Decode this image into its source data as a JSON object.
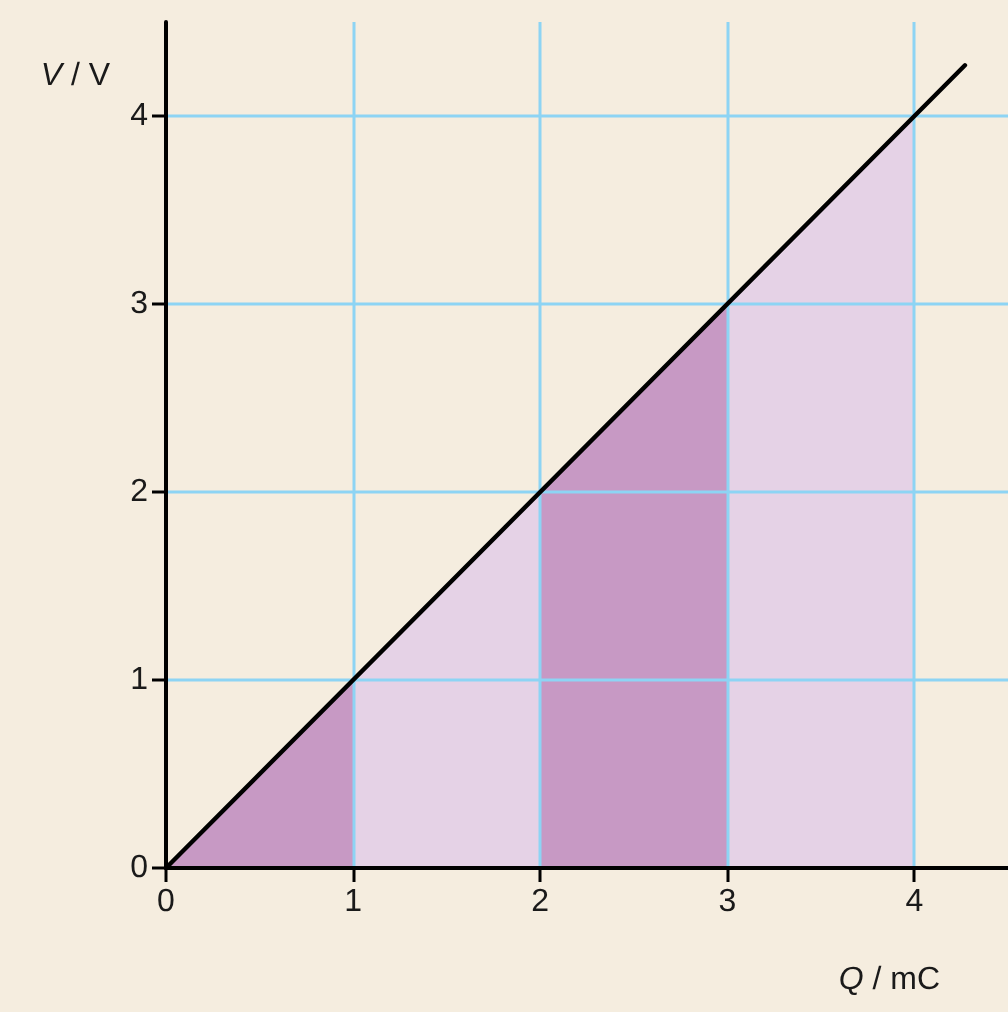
{
  "chart_data": {
    "type": "line",
    "xlabel": "Q / mC",
    "ylabel": "V / V",
    "xlim": [
      0,
      4.5
    ],
    "ylim": [
      0,
      4.5
    ],
    "xticks": [
      0,
      1,
      2,
      3,
      4
    ],
    "yticks": [
      0,
      1,
      2,
      3,
      4
    ],
    "grid": true,
    "series": [
      {
        "type": "area",
        "x": [
          0,
          4
        ],
        "values": [
          0,
          4
        ],
        "color": "#e5d2e6"
      },
      {
        "type": "area",
        "x": [
          0,
          1
        ],
        "values": [
          0,
          1
        ],
        "color": "#c799c4"
      },
      {
        "type": "area",
        "x": [
          2,
          3
        ],
        "values": [
          2,
          3
        ],
        "color": "#c799c4"
      },
      {
        "x": [
          0,
          4.27
        ],
        "values": [
          0,
          4.27
        ],
        "color": "#000000"
      }
    ]
  }
}
